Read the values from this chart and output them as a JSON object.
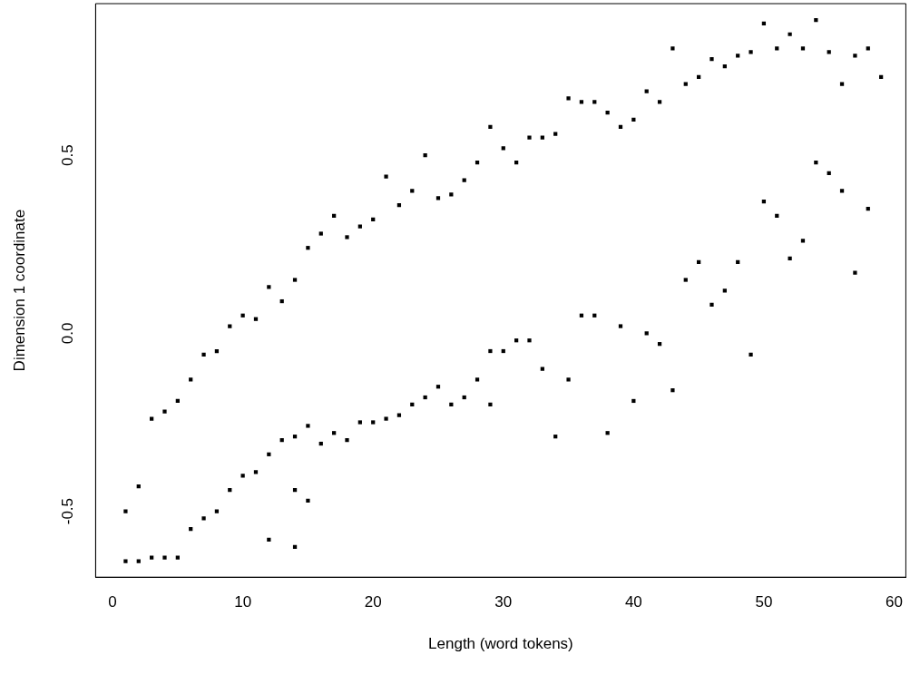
{
  "chart_data": {
    "type": "scatter",
    "xlabel": "Length (word tokens)",
    "ylabel": "Dimension 1 coordinate",
    "marker": "square",
    "grid": false,
    "legend": false,
    "xlim": [
      -1.3,
      60.9
    ],
    "ylim": [
      -0.685,
      0.926
    ],
    "xticks": [
      0,
      10,
      20,
      30,
      40,
      50,
      60
    ],
    "yticks": [
      {
        "value": -0.5,
        "label": "-0.5"
      },
      {
        "value": 0,
        "label": "0.0"
      },
      {
        "value": 0.5,
        "label": "0.5"
      }
    ],
    "series": [
      {
        "color": "#000000",
        "x": [
          1,
          1,
          2,
          2,
          3,
          3,
          4,
          4,
          5,
          5,
          6,
          6,
          7,
          7,
          8,
          8,
          9,
          9,
          10,
          10,
          11,
          11,
          12,
          12,
          12,
          13,
          13,
          14,
          14,
          14,
          14,
          15,
          15,
          15,
          16,
          16,
          17,
          17,
          18,
          18,
          19,
          19,
          20,
          20,
          21,
          21,
          22,
          22,
          23,
          23,
          24,
          24,
          25,
          25,
          26,
          26,
          27,
          27,
          28,
          28,
          29,
          29,
          29,
          30,
          30,
          31,
          31,
          32,
          32,
          33,
          33,
          34,
          34,
          35,
          35,
          36,
          36,
          37,
          37,
          38,
          38,
          39,
          39,
          40,
          40,
          41,
          41,
          42,
          42,
          43,
          43,
          44,
          44,
          45,
          45,
          46,
          46,
          47,
          47,
          48,
          48,
          49,
          49,
          50,
          50,
          51,
          51,
          52,
          52,
          53,
          53,
          54,
          54,
          55,
          55,
          56,
          56,
          57,
          57,
          58,
          58,
          59
        ],
        "values": [
          -0.5,
          -0.64,
          -0.43,
          -0.64,
          -0.24,
          -0.63,
          -0.22,
          -0.63,
          -0.19,
          -0.63,
          -0.13,
          -0.55,
          -0.06,
          -0.52,
          -0.05,
          -0.5,
          0.02,
          -0.44,
          0.05,
          -0.4,
          0.04,
          -0.39,
          0.13,
          -0.34,
          -0.58,
          0.09,
          -0.3,
          0.15,
          -0.29,
          -0.44,
          -0.6,
          0.24,
          -0.26,
          -0.47,
          0.28,
          -0.31,
          0.33,
          -0.28,
          0.27,
          -0.3,
          0.3,
          -0.25,
          0.32,
          -0.25,
          0.44,
          -0.24,
          0.36,
          -0.23,
          0.4,
          -0.2,
          0.5,
          -0.18,
          0.38,
          -0.15,
          0.39,
          -0.2,
          0.43,
          -0.18,
          0.48,
          -0.13,
          0.58,
          -0.05,
          -0.2,
          0.52,
          -0.05,
          0.48,
          -0.02,
          0.55,
          -0.02,
          0.55,
          -0.1,
          0.56,
          -0.29,
          0.66,
          -0.13,
          0.65,
          0.05,
          0.65,
          0.05,
          0.62,
          -0.28,
          0.58,
          0.02,
          0.6,
          -0.19,
          0.68,
          0.0,
          0.65,
          -0.03,
          0.8,
          -0.16,
          0.7,
          0.15,
          0.72,
          0.2,
          0.77,
          0.08,
          0.75,
          0.12,
          0.78,
          0.2,
          0.79,
          -0.06,
          0.87,
          0.37,
          0.8,
          0.33,
          0.84,
          0.21,
          0.8,
          0.26,
          0.88,
          0.48,
          0.79,
          0.45,
          0.7,
          0.4,
          0.78,
          0.17,
          0.8,
          0.35,
          0.72
        ]
      }
    ]
  }
}
